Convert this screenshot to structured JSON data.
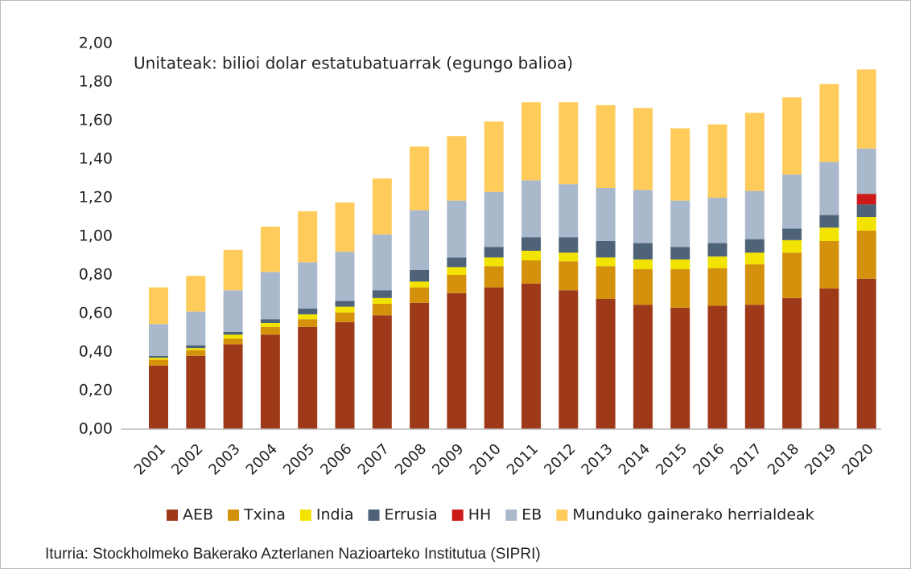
{
  "chart_data": {
    "type": "stacked-bar",
    "annotation": "Unitateak: bilioi dolar estatubatuarrak (egungo balioa)",
    "source": "Iturria: Stockholmeko Bakerako Azterlanen Nazioarteko Institutua (SIPRI)",
    "categories": [
      "2001",
      "2002",
      "2003",
      "2004",
      "2005",
      "2006",
      "2007",
      "2008",
      "2009",
      "2010",
      "2011",
      "2012",
      "2013",
      "2014",
      "2015",
      "2016",
      "2017",
      "2018",
      "2019",
      "2020"
    ],
    "series": [
      {
        "name": "AEB",
        "color": "#9e3a1a",
        "values": [
          0.33,
          0.38,
          0.44,
          0.49,
          0.53,
          0.555,
          0.59,
          0.655,
          0.705,
          0.735,
          0.755,
          0.72,
          0.675,
          0.645,
          0.63,
          0.64,
          0.645,
          0.68,
          0.73,
          0.78
        ]
      },
      {
        "name": "Txina",
        "color": "#d4920c",
        "values": [
          0.03,
          0.03,
          0.03,
          0.04,
          0.04,
          0.05,
          0.06,
          0.08,
          0.095,
          0.11,
          0.12,
          0.15,
          0.17,
          0.185,
          0.2,
          0.195,
          0.21,
          0.235,
          0.245,
          0.25
        ]
      },
      {
        "name": "India",
        "color": "#f2e400",
        "values": [
          0.01,
          0.01,
          0.02,
          0.02,
          0.025,
          0.03,
          0.03,
          0.03,
          0.04,
          0.045,
          0.05,
          0.045,
          0.045,
          0.05,
          0.05,
          0.06,
          0.06,
          0.065,
          0.07,
          0.07
        ]
      },
      {
        "name": "Errusia",
        "color": "#4f6378",
        "values": [
          0.01,
          0.015,
          0.015,
          0.02,
          0.03,
          0.03,
          0.04,
          0.06,
          0.05,
          0.055,
          0.07,
          0.08,
          0.085,
          0.085,
          0.065,
          0.07,
          0.07,
          0.06,
          0.065,
          0.065
        ]
      },
      {
        "name": "HH",
        "color": "#cc1a1a",
        "values": [
          0,
          0,
          0,
          0,
          0,
          0,
          0,
          0,
          0,
          0,
          0,
          0,
          0,
          0,
          0,
          0,
          0,
          0,
          0,
          0.055
        ]
      },
      {
        "name": "EB",
        "color": "#aab8cc",
        "values": [
          0.165,
          0.175,
          0.215,
          0.245,
          0.24,
          0.255,
          0.29,
          0.31,
          0.295,
          0.285,
          0.295,
          0.275,
          0.275,
          0.275,
          0.24,
          0.235,
          0.25,
          0.28,
          0.275,
          0.235
        ]
      },
      {
        "name": "Munduko gainerako herrialdeak",
        "color": "#ffcc5c",
        "values": [
          0.19,
          0.185,
          0.21,
          0.235,
          0.265,
          0.255,
          0.29,
          0.33,
          0.335,
          0.365,
          0.405,
          0.425,
          0.43,
          0.425,
          0.375,
          0.38,
          0.405,
          0.4,
          0.405,
          0.41
        ]
      }
    ],
    "ylim": [
      0,
      2
    ],
    "yticks": [
      {
        "value": 0,
        "label": "0,00"
      },
      {
        "value": 0.2,
        "label": "0,20"
      },
      {
        "value": 0.4,
        "label": "0,40"
      },
      {
        "value": 0.6,
        "label": "0,60"
      },
      {
        "value": 0.8,
        "label": "0,80"
      },
      {
        "value": 1,
        "label": "1,00"
      },
      {
        "value": 1.2,
        "label": "1,20"
      },
      {
        "value": 1.4,
        "label": "1,40"
      },
      {
        "value": 1.6,
        "label": "1,60"
      },
      {
        "value": 1.8,
        "label": "1,80"
      },
      {
        "value": 2,
        "label": "2,00"
      }
    ],
    "legend": "bottom"
  }
}
